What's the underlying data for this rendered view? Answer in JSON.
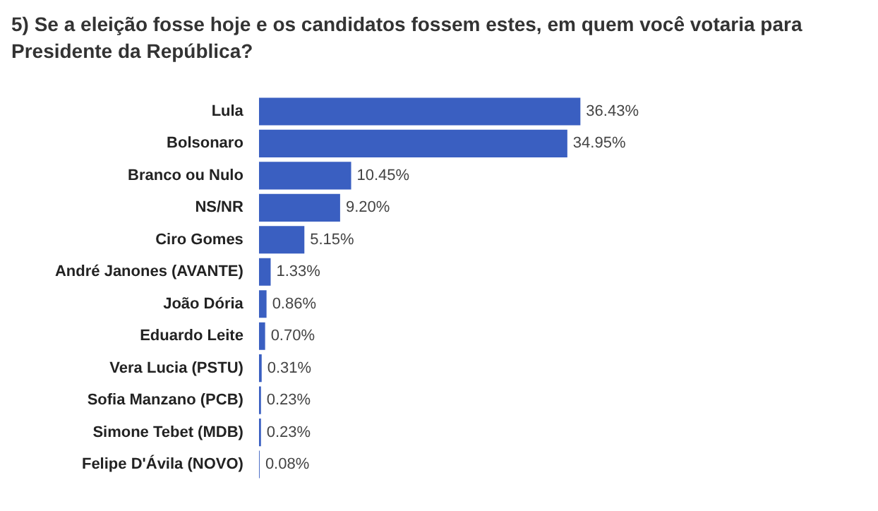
{
  "chart_data": {
    "type": "bar",
    "orientation": "horizontal",
    "title": "5) Se a eleição fosse hoje e os candidatos fossem estes, em quem você votaria para Presidente da República?",
    "categories": [
      "Lula",
      "Bolsonaro",
      "Branco ou Nulo",
      "NS/NR",
      "Ciro Gomes",
      "André Janones (AVANTE)",
      "João Dória",
      "Eduardo Leite",
      "Vera Lucia (PSTU)",
      "Sofia Manzano (PCB)",
      "Simone Tebet (MDB)",
      "Felipe D'Ávila (NOVO)"
    ],
    "values": [
      36.43,
      34.95,
      10.45,
      9.2,
      5.15,
      1.33,
      0.86,
      0.7,
      0.31,
      0.23,
      0.23,
      0.08
    ],
    "value_labels": [
      "36.43%",
      "34.95%",
      "10.45%",
      "9.20%",
      "5.15%",
      "1.33%",
      "0.86%",
      "0.70%",
      "0.31%",
      "0.23%",
      "0.23%",
      "0.08%"
    ],
    "color": "#3a5fc1",
    "tick_labels": "y"
  }
}
